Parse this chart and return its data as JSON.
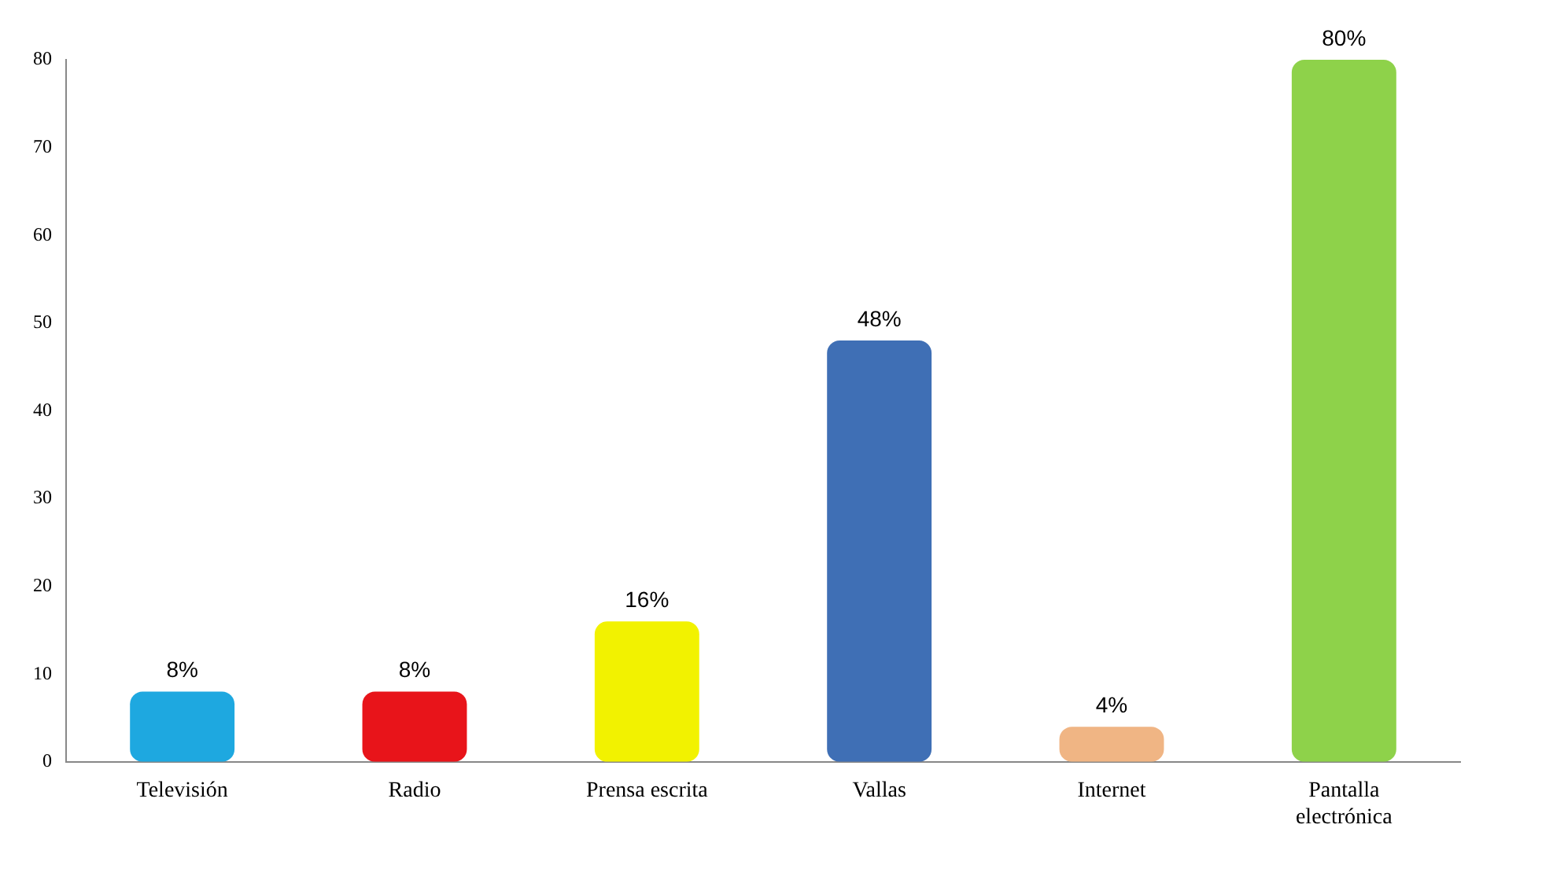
{
  "chart_data": {
    "type": "bar",
    "categories": [
      "Televisión",
      "Radio",
      "Prensa escrita",
      "Vallas",
      "Internet",
      "Pantalla electrónica"
    ],
    "values": [
      8,
      8,
      16,
      48,
      4,
      80
    ],
    "colors": [
      "#1ea8e0",
      "#e8141a",
      "#f2f200",
      "#3f6fb5",
      "#f0b584",
      "#8ed24a"
    ],
    "value_labels": [
      "8%",
      "8%",
      "16%",
      "48%",
      "4%",
      "80%"
    ],
    "ylim": [
      0,
      80
    ],
    "yticks": [
      0,
      10,
      20,
      30,
      40,
      50,
      60,
      70,
      80
    ],
    "grid": false,
    "legend": false
  }
}
